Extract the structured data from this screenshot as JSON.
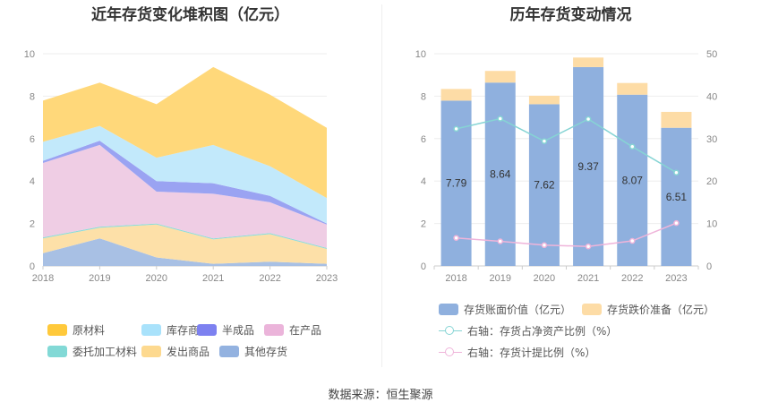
{
  "source": "数据来源：恒生聚源",
  "chart_data": [
    {
      "type": "area",
      "title": "近年存货变化堆积图（亿元）",
      "x": [
        "2018",
        "2019",
        "2020",
        "2021",
        "2022",
        "2023"
      ],
      "ylim": [
        0,
        10
      ],
      "yticks": [
        0,
        2,
        4,
        6,
        8,
        10
      ],
      "stacked": true,
      "grid": true,
      "legend_position": "bottom",
      "series": [
        {
          "name": "其他存货",
          "values": [
            0.6,
            1.3,
            0.4,
            0.1,
            0.2,
            0.1
          ],
          "color": "#a8c0e4"
        },
        {
          "name": "发出商品",
          "values": [
            0.7,
            0.5,
            1.55,
            1.15,
            1.3,
            0.7
          ],
          "color": "#fde0a8"
        },
        {
          "name": "委托加工材料",
          "values": [
            0.05,
            0.05,
            0.05,
            0.05,
            0.05,
            0.05
          ],
          "color": "#8fdcd8"
        },
        {
          "name": "在产品",
          "values": [
            3.5,
            3.85,
            1.5,
            2.1,
            1.45,
            1.1
          ],
          "color": "#efcde4"
        },
        {
          "name": "半成品",
          "values": [
            0.1,
            0.2,
            0.5,
            0.5,
            0.3,
            0.05
          ],
          "color": "#9aa3f2"
        },
        {
          "name": "库存商品",
          "values": [
            0.9,
            0.7,
            1.1,
            1.8,
            1.4,
            1.2
          ],
          "color": "#c2e9fb"
        },
        {
          "name": "原材料",
          "values": [
            1.94,
            2.04,
            2.52,
            3.67,
            3.37,
            3.31
          ],
          "color": "#ffd87a"
        }
      ],
      "legend_colors": [
        "#ffd87a",
        "#b8e6fb",
        "#8b8ff2",
        "#efbfe0",
        "#8fdcd8",
        "#fde0a8",
        "#a8c0e4"
      ]
    },
    {
      "type": "bar",
      "title": "历年存货变动情况",
      "categories": [
        "2018",
        "2019",
        "2020",
        "2021",
        "2022",
        "2023"
      ],
      "ylim": [
        0,
        10
      ],
      "yticks": [
        0,
        2,
        4,
        6,
        8,
        10
      ],
      "y2lim": [
        0,
        50
      ],
      "y2ticks": [
        0,
        10,
        20,
        30,
        40,
        50
      ],
      "stacked": true,
      "grid": true,
      "legend_position": "bottom",
      "series": [
        {
          "name": "存货账面价值（亿元）",
          "values": [
            7.79,
            8.64,
            7.62,
            9.37,
            8.07,
            6.51
          ],
          "labels": [
            "7.79",
            "8.64",
            "7.62",
            "9.37",
            "8.07",
            "6.51"
          ],
          "color": "#8fb0de"
        },
        {
          "name": "存货跌价准备（亿元）",
          "values": [
            0.55,
            0.55,
            0.4,
            0.45,
            0.55,
            0.75
          ],
          "color": "#fddca6"
        },
        {
          "name": "右轴：存货占净资产比例（%）",
          "axis": "right",
          "type": "line",
          "values": [
            32.3,
            34.7,
            29.4,
            34.6,
            28.1,
            22.0
          ],
          "color": "#86d4d4"
        },
        {
          "name": "右轴：存货计提比例（%）",
          "axis": "right",
          "type": "line",
          "values": [
            6.6,
            5.8,
            4.9,
            4.6,
            5.9,
            10.1
          ],
          "color": "#efb4da"
        }
      ]
    }
  ]
}
